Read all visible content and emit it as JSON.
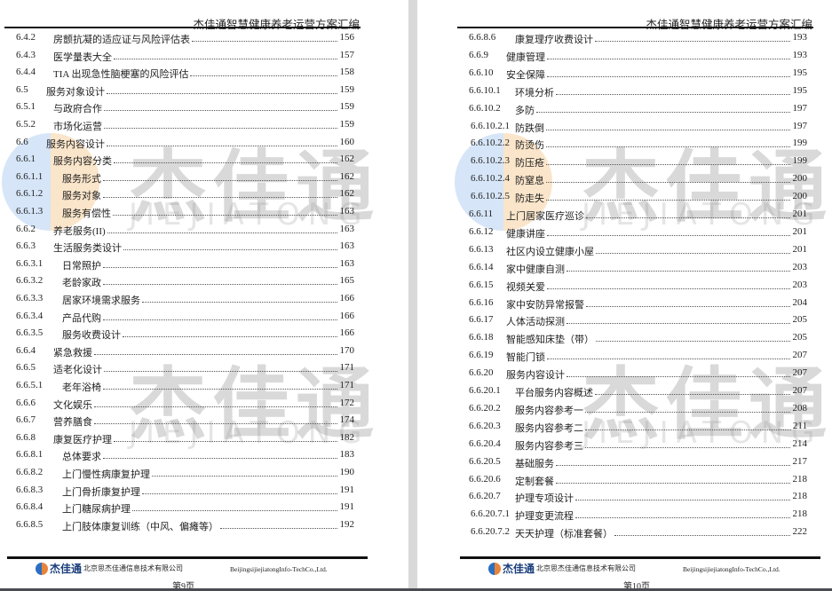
{
  "pages": [
    {
      "header": "杰佳通智慧健康养老运营方案汇编",
      "footer_company": "北京思杰佳通信息技术有限公司",
      "footer_en": "BeijingsijiejiatongInfo-TechCo.,Ltd.",
      "footer_brand": "杰佳通",
      "page_label": "第9页",
      "entries": [
        {
          "num": "6.4.2",
          "title": "房颤抗凝的适应证与风险评估表",
          "page": "156",
          "level": 3
        },
        {
          "num": "6.4.3",
          "title": "医学量表大全",
          "page": "157",
          "level": 3
        },
        {
          "num": "6.4.4",
          "title": "TIA 出现急性脑梗塞的风险评估",
          "page": "158",
          "level": 3
        },
        {
          "num": "6.5",
          "title": "服务对象设计",
          "page": "159",
          "level": 2
        },
        {
          "num": "6.5.1",
          "title": "与政府合作",
          "page": "159",
          "level": 3
        },
        {
          "num": "6.5.2",
          "title": "市场化运营",
          "page": "159",
          "level": 3
        },
        {
          "num": "6.6",
          "title": "服务内容设计",
          "page": "160",
          "level": 2
        },
        {
          "num": "6.6.1",
          "title": "服务内容分类",
          "page": "162",
          "level": 3
        },
        {
          "num": "6.6.1.1",
          "title": "服务形式",
          "page": "162",
          "level": 4
        },
        {
          "num": "6.6.1.2",
          "title": "服务对象",
          "page": "162",
          "level": 4
        },
        {
          "num": "6.6.1.3",
          "title": "服务有偿性",
          "page": "163",
          "level": 4
        },
        {
          "num": "6.6.2",
          "title": "养老服务(II)",
          "page": "163",
          "level": 3
        },
        {
          "num": "6.6.3",
          "title": "生活服务类设计",
          "page": "163",
          "level": 3
        },
        {
          "num": "6.6.3.1",
          "title": "日常照护",
          "page": "163",
          "level": 4
        },
        {
          "num": "6.6.3.2",
          "title": "老龄家政",
          "page": "165",
          "level": 4
        },
        {
          "num": "6.6.3.3",
          "title": "居家环境需求服务",
          "page": "166",
          "level": 4
        },
        {
          "num": "6.6.3.4",
          "title": "产品代购",
          "page": "166",
          "level": 4
        },
        {
          "num": "6.6.3.5",
          "title": "服务收费设计",
          "page": "166",
          "level": 4
        },
        {
          "num": "6.6.4",
          "title": "紧急救援",
          "page": "170",
          "level": 3
        },
        {
          "num": "6.6.5",
          "title": "适老化设计",
          "page": "171",
          "level": 3
        },
        {
          "num": "6.6.5.1",
          "title": "老年浴椅",
          "page": "171",
          "level": 4
        },
        {
          "num": "6.6.6",
          "title": "文化娱乐",
          "page": "172",
          "level": 3
        },
        {
          "num": "6.6.7",
          "title": "营养膳食",
          "page": "174",
          "level": 3
        },
        {
          "num": "6.6.8",
          "title": "康复医疗护理",
          "page": "182",
          "level": 3
        },
        {
          "num": "6.6.8.1",
          "title": "总体要求",
          "page": "183",
          "level": 4
        },
        {
          "num": "6.6.8.2",
          "title": "上门慢性病康复护理",
          "page": "190",
          "level": 4
        },
        {
          "num": "6.6.8.3",
          "title": "上门骨折康复护理",
          "page": "191",
          "level": 4
        },
        {
          "num": "6.6.8.4",
          "title": "上门糖尿病护理",
          "page": "191",
          "level": 4
        },
        {
          "num": "6.6.8.5",
          "title": "上门肢体康复训练（中风、偏瘫等）",
          "page": "192",
          "level": 4
        }
      ]
    },
    {
      "header": "杰佳通智慧健康养老运营方案汇编",
      "footer_company": "北京思杰佳通信息技术有限公司",
      "footer_en": "BeijingsijiejiatongInfo-TechCo.,Ltd.",
      "footer_brand": "杰佳通",
      "page_label": "第10页",
      "entries": [
        {
          "num": "6.6.8.6",
          "title": "康复理疗收费设计",
          "page": "193",
          "level": 4
        },
        {
          "num": "6.6.9",
          "title": "健康管理",
          "page": "193",
          "level": 3
        },
        {
          "num": "6.6.10",
          "title": "安全保障",
          "page": "195",
          "level": 3
        },
        {
          "num": "6.6.10.1",
          "title": "环境分析",
          "page": "195",
          "level": 4
        },
        {
          "num": "6.6.10.2",
          "title": "多防",
          "page": "197",
          "level": 4
        },
        {
          "num": "6.6.10.2.1",
          "title": "防跌倒",
          "page": "197",
          "level": 5
        },
        {
          "num": "6.6.10.2.2",
          "title": "防烫伤",
          "page": "199",
          "level": 5
        },
        {
          "num": "6.6.10.2.3",
          "title": "防压疮",
          "page": "199",
          "level": 5
        },
        {
          "num": "6.6.10.2.4",
          "title": "防窒息",
          "page": "200",
          "level": 5
        },
        {
          "num": "6.6.10.2.5",
          "title": "防走失",
          "page": "200",
          "level": 5
        },
        {
          "num": "6.6.11",
          "title": "上门居家医疗巡诊",
          "page": "201",
          "level": 3
        },
        {
          "num": "6.6.12",
          "title": "健康讲座",
          "page": "201",
          "level": 3
        },
        {
          "num": "6.6.13",
          "title": "社区内设立健康小屋",
          "page": "201",
          "level": 3
        },
        {
          "num": "6.6.14",
          "title": "家中健康自测",
          "page": "203",
          "level": 3
        },
        {
          "num": "6.6.15",
          "title": "视频关爱",
          "page": "203",
          "level": 3
        },
        {
          "num": "6.6.16",
          "title": "家中安防异常报警",
          "page": "204",
          "level": 3
        },
        {
          "num": "6.6.17",
          "title": "人体活动探测",
          "page": "205",
          "level": 3
        },
        {
          "num": "6.6.18",
          "title": "智能感知床垫（带）",
          "page": "205",
          "level": 3
        },
        {
          "num": "6.6.19",
          "title": "智能门锁",
          "page": "207",
          "level": 3
        },
        {
          "num": "6.6.20",
          "title": "服务内容设计",
          "page": "207",
          "level": 3
        },
        {
          "num": "6.6.20.1",
          "title": "平台服务内容概述",
          "page": "207",
          "level": 4
        },
        {
          "num": "6.6.20.2",
          "title": "服务内容参考一",
          "page": "208",
          "level": 4
        },
        {
          "num": "6.6.20.3",
          "title": "服务内容参考二",
          "page": "211",
          "level": 4
        },
        {
          "num": "6.6.20.4",
          "title": "服务内容参考三",
          "page": "214",
          "level": 4
        },
        {
          "num": "6.6.20.5",
          "title": "基础服务",
          "page": "217",
          "level": 4
        },
        {
          "num": "6.6.20.6",
          "title": "定制套餐",
          "page": "218",
          "level": 4
        },
        {
          "num": "6.6.20.7",
          "title": "护理专项设计",
          "page": "218",
          "level": 4
        },
        {
          "num": "6.6.20.7.1",
          "title": "护理变更流程",
          "page": "218",
          "level": 5
        },
        {
          "num": "6.6.20.7.2",
          "title": "天天护理（标准套餐）",
          "page": "222",
          "level": 5
        }
      ]
    }
  ],
  "watermark": {
    "cn": "杰佳通",
    "en": "JIEJIATONG"
  }
}
